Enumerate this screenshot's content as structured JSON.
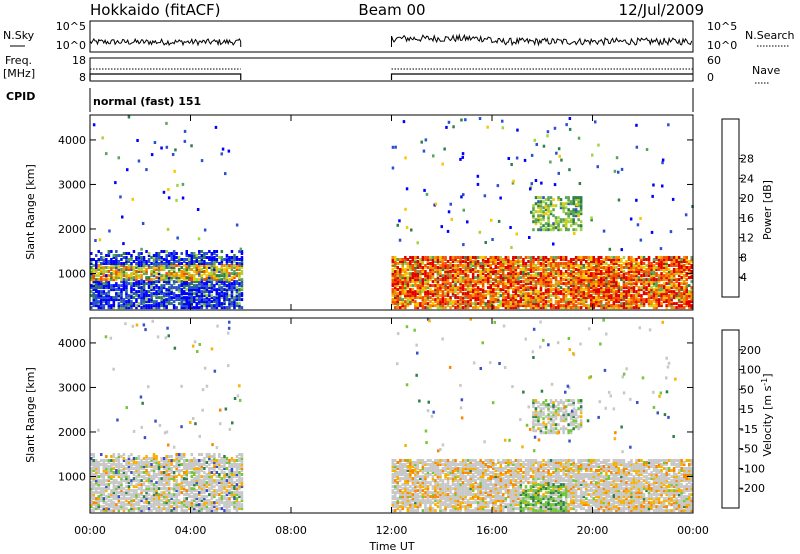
{
  "header": {
    "station": "Hokkaido (fitACF)",
    "beam": "Beam 00",
    "date": "12/Jul/2009"
  },
  "labels": {
    "nsky": "N.Sky",
    "nsearch": "N.Search",
    "freq": "Freq.",
    "freq_unit": "[MHz]",
    "nave": "Nave",
    "cpid": "CPID",
    "cpid_value": "normal (fast) 151",
    "xaxis_title": "Time UT",
    "ylabel": "Slant Range [km]",
    "power_label": "Power [dB]",
    "velocity_label": "Velocity [m s",
    "velocity_exp": "-1",
    "velocity_close": "]"
  },
  "noise_axis": {
    "top": "10^5",
    "bottom": "10^0"
  },
  "freq_axis": {
    "top": "18",
    "bottom": "8"
  },
  "nave_axis": {
    "top": "60",
    "bottom": "0"
  },
  "colors": {
    "power": [
      "#0000ff",
      "#2a4fd0",
      "#2f7f4a",
      "#5aa55a",
      "#a5d43a",
      "#f7c800",
      "#f79000",
      "#f25000",
      "#e10000"
    ],
    "velocity": [
      "#3b50c8",
      "#3b50c8",
      "#2f7f4a",
      "#74c63a",
      "#c8c8c8",
      "#f7b200",
      "#f78800",
      "#f25000",
      "#e10000"
    ]
  },
  "chart_data": [
    {
      "type": "heatmap",
      "title": "Power [dB]",
      "xlabel": "Time UT",
      "ylabel": "Slant Range [km]",
      "x_ticks": [
        "00:00",
        "04:00",
        "08:00",
        "12:00",
        "16:00",
        "20:00",
        "00:00"
      ],
      "xlim_hours": [
        0,
        24
      ],
      "y_ticks": [
        1000,
        2000,
        3000,
        4000
      ],
      "ylim": [
        180,
        4560
      ],
      "colorbar_ticks": [
        4,
        8,
        12,
        16,
        20,
        24,
        28
      ],
      "colorbar_range": [
        0,
        32
      ],
      "data_gaps_hours": [
        [
          6,
          12
        ]
      ],
      "features": [
        {
          "hours": [
            0,
            6
          ],
          "range_km": [
            200,
            1500
          ],
          "dominant_power_db": "4-24",
          "note": "strong near 900-1100 km"
        },
        {
          "hours": [
            12,
            24
          ],
          "range_km": [
            200,
            1350
          ],
          "dominant_power_db": "20-32"
        },
        {
          "hours": [
            17.5,
            19.5
          ],
          "range_km": [
            2000,
            2700
          ],
          "dominant_power_db": "12-20"
        }
      ]
    },
    {
      "type": "heatmap",
      "title": "Velocity [m s-1]",
      "xlabel": "Time UT",
      "ylabel": "Slant Range [km]",
      "x_ticks": [
        "00:00",
        "04:00",
        "08:00",
        "12:00",
        "16:00",
        "20:00",
        "00:00"
      ],
      "xlim_hours": [
        0,
        24
      ],
      "y_ticks": [
        1000,
        2000,
        3000,
        4000
      ],
      "ylim": [
        180,
        4560
      ],
      "colorbar_ticks": [
        200,
        100,
        50,
        15,
        -15,
        -50,
        -100,
        -200
      ],
      "colorbar_range": [
        -250,
        250
      ],
      "data_gaps_hours": [
        [
          6,
          12
        ]
      ],
      "features": [
        {
          "hours": [
            0,
            6
          ],
          "range_km": [
            200,
            1500
          ],
          "dominant_velocity": "-15 to 15",
          "note": "mostly grey ground scatter"
        },
        {
          "hours": [
            12,
            24
          ],
          "range_km": [
            200,
            1350
          ],
          "dominant_velocity": "-15 to -50",
          "note": "grey with orange patches"
        },
        {
          "hours": [
            17,
            19
          ],
          "range_km": [
            200,
            800
          ],
          "dominant_velocity": "15 to 50"
        }
      ]
    }
  ]
}
